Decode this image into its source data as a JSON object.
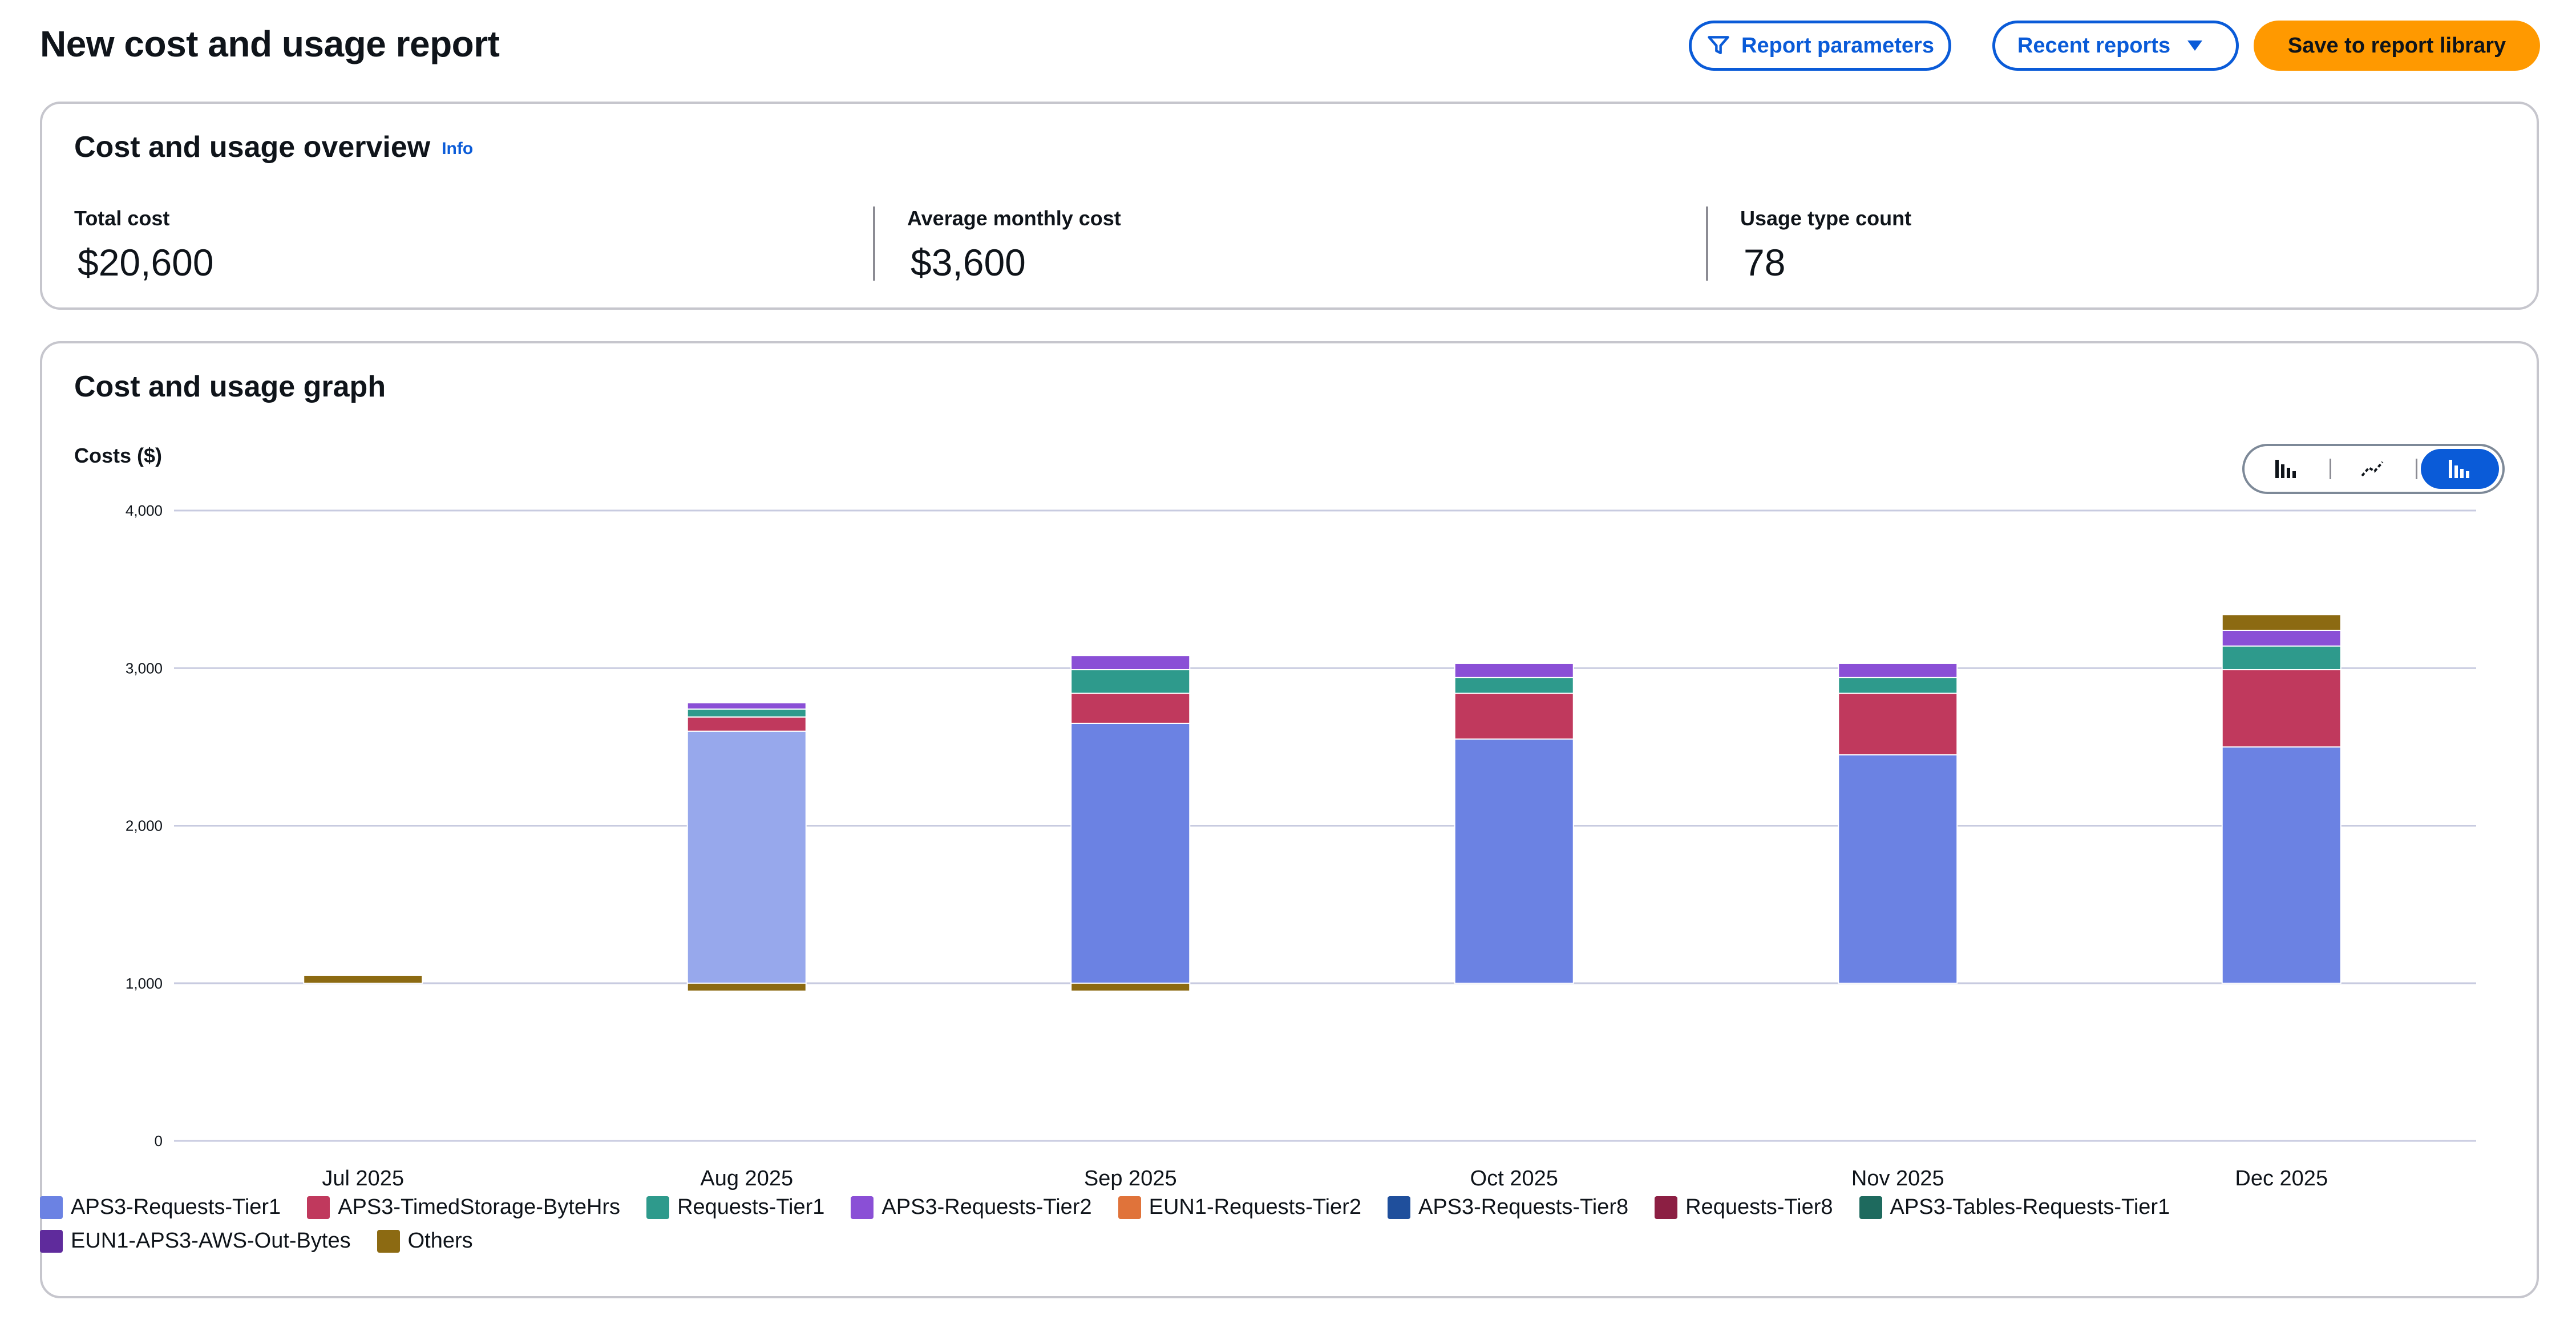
{
  "header": {
    "title": "New cost and usage report",
    "report_parameters_label": "Report parameters",
    "recent_reports_label": "Recent reports",
    "save_label": "Save to report library"
  },
  "overview": {
    "title": "Cost and usage overview",
    "info_label": "Info",
    "total_cost_label": "Total cost",
    "total_cost_value": "$20,600",
    "avg_monthly_label": "Average monthly cost",
    "avg_monthly_value": "$3,600",
    "usage_count_label": "Usage type count",
    "usage_count_value": "78"
  },
  "graph": {
    "title": "Cost and usage graph",
    "y_axis_label": "Costs ($)",
    "view_toggle": {
      "active": "stacked-bar"
    }
  },
  "colors": {
    "APS3-Requests-Tier1": "#6b82e3",
    "APS3-Requests-Tier1-highlight": "#97a8ec",
    "APS3-TimedStorage-ByteHrs": "#c0395d",
    "Requests-Tier1": "#2e9a8c",
    "APS3-Requests-Tier2": "#8a4fd6",
    "EUN1-Requests-Tier2": "#e0733a",
    "APS3-Requests-Tier8": "#1f4f9c",
    "Requests-Tier8": "#8c1f43",
    "APS3-Tables-Requests-Tier1": "#1e6a5e",
    "EUN1-APS3-AWS-Out-Bytes": "#5f2b9c",
    "Others": "#8c6a12"
  },
  "chart_data": {
    "type": "bar",
    "stacked": true,
    "title": "Cost and usage graph",
    "xlabel": "",
    "ylabel": "Costs ($)",
    "ylim": [
      0,
      4000
    ],
    "yticks": [
      0,
      1000,
      2000,
      3000,
      4000
    ],
    "ytick_labels": [
      "0",
      "1,000",
      "2,000",
      "3,000",
      "4,000"
    ],
    "categories": [
      "Jul 2025",
      "Aug 2025",
      "Sep 2025",
      "Oct 2025",
      "Nov 2025",
      "Dec 2025"
    ],
    "baseline": 1000,
    "series": [
      {
        "name": "APS3-Requests-Tier1",
        "values": [
          0,
          1600,
          1650,
          1550,
          1450,
          1500
        ]
      },
      {
        "name": "APS3-TimedStorage-ByteHrs",
        "values": [
          0,
          90,
          190,
          290,
          390,
          490
        ]
      },
      {
        "name": "Requests-Tier1",
        "values": [
          0,
          50,
          150,
          100,
          100,
          150
        ]
      },
      {
        "name": "APS3-Requests-Tier2",
        "values": [
          0,
          40,
          90,
          90,
          90,
          100
        ]
      },
      {
        "name": "EUN1-Requests-Tier2",
        "values": [
          0,
          0,
          0,
          0,
          0,
          0
        ]
      },
      {
        "name": "APS3-Requests-Tier8",
        "values": [
          0,
          0,
          0,
          0,
          0,
          0
        ]
      },
      {
        "name": "Requests-Tier8",
        "values": [
          0,
          0,
          0,
          0,
          0,
          0
        ]
      },
      {
        "name": "APS3-Tables-Requests-Tier1",
        "values": [
          0,
          0,
          0,
          0,
          0,
          0
        ]
      },
      {
        "name": "EUN1-APS3-AWS-Out-Bytes",
        "values": [
          0,
          0,
          0,
          0,
          0,
          0
        ]
      },
      {
        "name": "Others",
        "values": [
          50,
          -50,
          -50,
          0,
          0,
          100
        ]
      }
    ],
    "legend_position": "bottom"
  }
}
